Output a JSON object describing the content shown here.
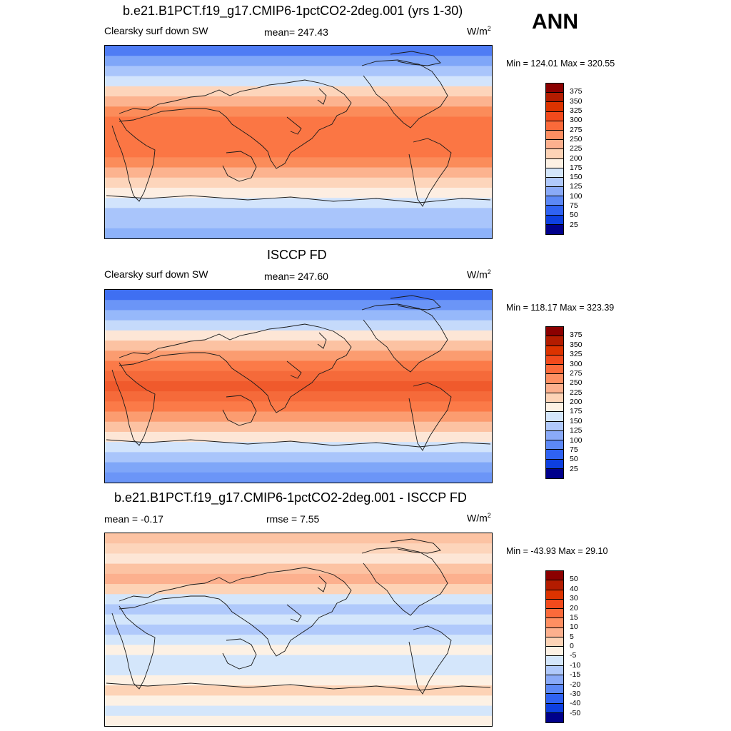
{
  "season": "ANN",
  "units_base": "W/m",
  "units_exp": "2",
  "panels": [
    {
      "title": "b.e21.B1PCT.f19_g17.CMIP6-1pctCO2-2deg.001 (yrs 1-30)",
      "left_label": "Clearsky surf down SW",
      "center_label": "mean= 247.43",
      "minmax": "Min = 124.01 Max = 320.55"
    },
    {
      "title": "ISCCP FD",
      "left_label": "Clearsky surf down SW",
      "center_label": "mean= 247.60",
      "minmax": "Min = 118.17 Max = 323.39"
    },
    {
      "title": "b.e21.B1PCT.f19_g17.CMIP6-1pctCO2-2deg.001 - ISCCP FD",
      "left_label": "mean =  -0.17",
      "center_label": "rmse =   7.55",
      "minmax": "Min = -43.93 Max =  29.10"
    }
  ],
  "colorbars": {
    "absolute": {
      "labels": [
        "375",
        "350",
        "325",
        "300",
        "275",
        "250",
        "225",
        "200",
        "175",
        "150",
        "125",
        "100",
        "75",
        "50",
        "25"
      ],
      "colors": [
        "#8b0000",
        "#b31c00",
        "#dc3300",
        "#f24a1c",
        "#fb6a3a",
        "#fe8f62",
        "#fcb08e",
        "#fdd3b6",
        "#fdf1e4",
        "#d4e6fb",
        "#b0c9fb",
        "#8aaaf8",
        "#5c88f6",
        "#2f62f2",
        "#0d3fe0",
        "#00008b"
      ]
    },
    "difference": {
      "labels": [
        "50",
        "40",
        "30",
        "20",
        "15",
        "10",
        "5",
        "0",
        "-5",
        "-10",
        "-15",
        "-20",
        "-30",
        "-40",
        "-50"
      ],
      "colors": [
        "#8b0000",
        "#b31c00",
        "#dc3300",
        "#f24a1c",
        "#fb6a3a",
        "#fe8f62",
        "#fcb08e",
        "#fdd3b6",
        "#fdf1e4",
        "#d4e6fb",
        "#b0c9fb",
        "#8aaaf8",
        "#5c88f6",
        "#2f62f2",
        "#0d3fe0",
        "#00008b"
      ]
    }
  },
  "map_fields": {
    "model": [
      "#4f7cf4",
      "#7fa6f8",
      "#a9c5fb",
      "#d2e4fc",
      "#fdd5bb",
      "#fcb38f",
      "#fb8c5a",
      "#fb7644",
      "#fb7644",
      "#fb7644",
      "#fb7644",
      "#fb8c5a",
      "#fcb38f",
      "#fdd5bb",
      "#fdeee2",
      "#d2e4fc",
      "#a9c5fb",
      "#a9c5fb",
      "#8db2fa"
    ],
    "obs": [
      "#3f6ff2",
      "#6b95f7",
      "#96b8fa",
      "#c5dafb",
      "#fde6d6",
      "#fcc2a2",
      "#fb9c70",
      "#fb7a48",
      "#f56a3a",
      "#f05a2c",
      "#f56a3a",
      "#fb7a48",
      "#fb9c70",
      "#fcc2a2",
      "#fde6d6",
      "#d2e4fc",
      "#a9c5fb",
      "#7fa6f8",
      "#6b95f7"
    ],
    "diff": [
      "#fcc3a3",
      "#fdd5bb",
      "#fde6d6",
      "#fcc3a3",
      "#fcb08e",
      "#fdd3b6",
      "#d4e6fb",
      "#b0c9fb",
      "#d4e6fb",
      "#b0c9fb",
      "#d4e6fb",
      "#fdf1e4",
      "#d4e6fb",
      "#d4e6fb",
      "#fdf1e4",
      "#fdd3b6",
      "#fdf1e4",
      "#d4e6fb",
      "#fdf1e4"
    ]
  }
}
